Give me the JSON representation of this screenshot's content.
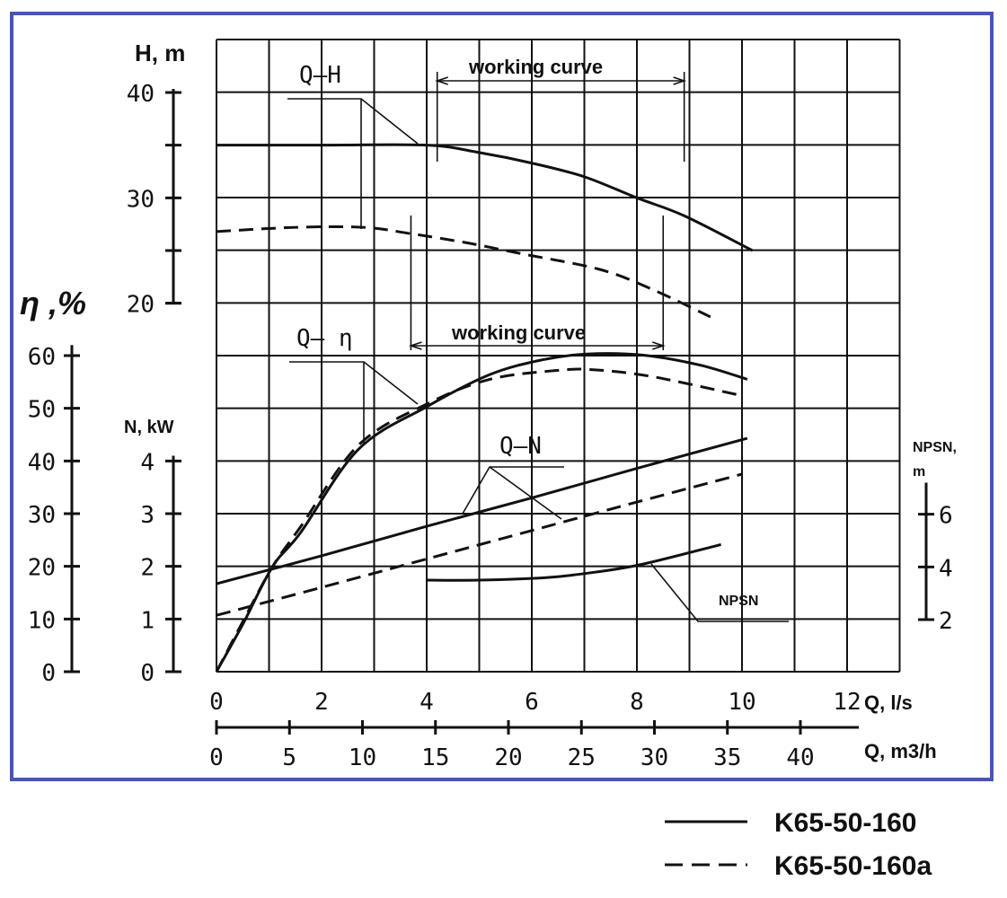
{
  "chart_data": {
    "type": "line",
    "title": "",
    "xlabel": "Q, l/s",
    "x2label": "Q, m3/h",
    "xlim": [
      0,
      13
    ],
    "x_ticks": [
      "0",
      "2",
      "4",
      "6",
      "8",
      "10",
      "12"
    ],
    "x2_ticks": [
      "0",
      "5",
      "10",
      "15",
      "20",
      "25",
      "30",
      "35",
      "40"
    ],
    "axes": {
      "H": {
        "label": "H, m",
        "ticks": [
          "40",
          "30",
          "20"
        ],
        "range": [
          20,
          45
        ]
      },
      "eta": {
        "label": "η ,%",
        "ticks": [
          "60",
          "50",
          "40",
          "30",
          "20",
          "10",
          "0"
        ],
        "range": [
          0,
          60
        ]
      },
      "N": {
        "label": "N, kW",
        "ticks": [
          "4",
          "3",
          "2",
          "1",
          "0"
        ],
        "range": [
          0,
          4
        ]
      },
      "NPSN": {
        "label_line1": "NPSN,",
        "label_line2": "m",
        "ticks": [
          "6",
          "4",
          "2"
        ],
        "range": [
          2,
          6
        ]
      }
    },
    "grid": true,
    "annotations": {
      "qh": "Q–H",
      "qeta": "Q– η",
      "qn": "Q–N",
      "npsn": "NPSN",
      "working_curve_top": "working curve",
      "working_curve_bottom": "working curve"
    },
    "working_ranges_ls": {
      "top": [
        4.2,
        8.9
      ],
      "bottom": [
        3.7,
        8.5
      ]
    },
    "legend": [
      {
        "name": "K65-50-160",
        "style": "solid"
      },
      {
        "name": "K65-50-160a",
        "style": "dashed"
      }
    ],
    "legend_position": "bottom-right",
    "series": [
      {
        "name": "Q-H K65-50-160",
        "axis": "H",
        "style": "solid",
        "x": [
          0,
          2,
          4,
          5,
          6,
          7,
          8,
          8.9,
          10.2
        ],
        "y": [
          35,
          35,
          35,
          34.3,
          33.3,
          32,
          30,
          28.3,
          25
        ]
      },
      {
        "name": "Q-H K65-50-160a",
        "axis": "H",
        "style": "dashed",
        "x": [
          0,
          1.5,
          2.8,
          3.7,
          4.8,
          5.8,
          7.3,
          8.3,
          9.4
        ],
        "y": [
          26.8,
          27.2,
          27.2,
          26.6,
          25.7,
          24.7,
          23.2,
          21.3,
          18.7
        ]
      },
      {
        "name": "Q-η K65-50-160",
        "axis": "eta",
        "style": "solid",
        "x": [
          0,
          0.5,
          1.07,
          1.6,
          2.7,
          4.0,
          5.2,
          6.2,
          7.05,
          8.1,
          9.2,
          10.1
        ],
        "y": [
          0,
          9,
          20,
          26.4,
          42.2,
          50.3,
          56.4,
          59.2,
          60.3,
          60.1,
          58.2,
          55.5
        ]
      },
      {
        "name": "Q-η K65-50-160a",
        "axis": "eta",
        "style": "dashed",
        "x": [
          0,
          0.5,
          1.07,
          1.6,
          2.7,
          4.0,
          5.2,
          6.5,
          7.2,
          8.3,
          9.95
        ],
        "y": [
          0,
          9.5,
          20,
          27.5,
          43,
          50.8,
          55.5,
          57.2,
          57.3,
          56,
          52.5
        ]
      },
      {
        "name": "Q-N K65-50-160",
        "axis": "N",
        "style": "solid",
        "x": [
          0,
          2,
          4,
          6,
          8,
          10.1
        ],
        "y": [
          1.67,
          2.2,
          2.76,
          3.3,
          3.86,
          4.43
        ]
      },
      {
        "name": "Q-N K65-50-160a",
        "axis": "N",
        "style": "dashed",
        "x": [
          0,
          2,
          4,
          6,
          8,
          10
        ],
        "y": [
          1.07,
          1.6,
          2.14,
          2.68,
          3.22,
          3.75
        ]
      },
      {
        "name": "NPSN K65-50-160",
        "axis": "NPSN",
        "style": "solid",
        "x": [
          4,
          5,
          6.3,
          7.2,
          8.1,
          9.6
        ],
        "y": [
          3.5,
          3.5,
          3.6,
          3.8,
          4.1,
          4.85
        ]
      }
    ]
  }
}
